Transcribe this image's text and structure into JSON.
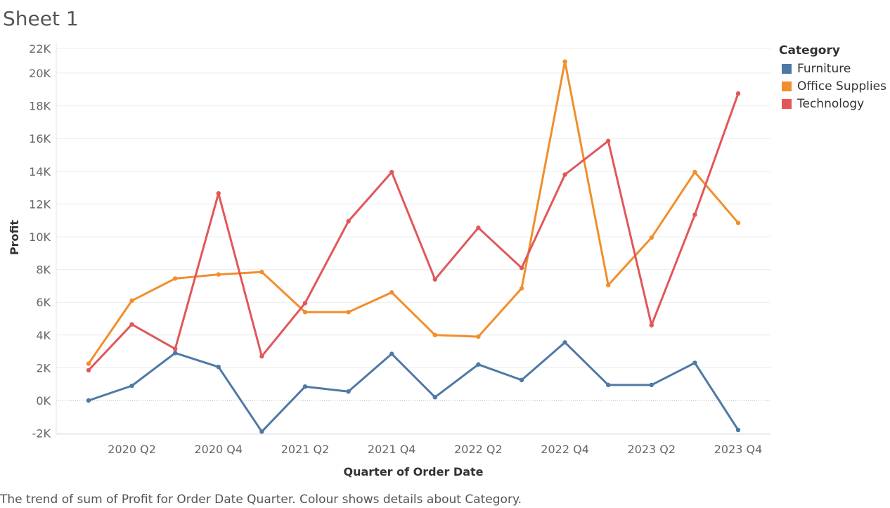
{
  "sheet": {
    "title": "Sheet 1"
  },
  "caption": "The trend of sum of Profit for Order Date Quarter.  Colour shows details about Category.",
  "legend": {
    "title": "Category"
  },
  "chart_data": {
    "type": "line",
    "xlabel": "Quarter of Order Date",
    "ylabel": "Profit",
    "x": [
      "2020 Q1",
      "2020 Q2",
      "2020 Q3",
      "2020 Q4",
      "2021 Q1",
      "2021 Q2",
      "2021 Q3",
      "2021 Q4",
      "2022 Q1",
      "2022 Q2",
      "2022 Q3",
      "2022 Q4",
      "2023 Q1",
      "2023 Q2",
      "2023 Q3",
      "2023 Q4"
    ],
    "x_tick_labels": [
      "2020 Q2",
      "2020 Q4",
      "2021 Q2",
      "2021 Q4",
      "2022 Q2",
      "2022 Q4",
      "2023 Q2",
      "2023 Q4"
    ],
    "x_tick_indices": [
      1,
      3,
      5,
      7,
      9,
      11,
      13,
      15
    ],
    "y_tick_labels": [
      "-2K",
      "0K",
      "2K",
      "4K",
      "6K",
      "8K",
      "10K",
      "12K",
      "14K",
      "16K",
      "18K",
      "20K",
      "22K"
    ],
    "y_tick_values": [
      -2000,
      0,
      2000,
      4000,
      6000,
      8000,
      10000,
      12000,
      14000,
      16000,
      18000,
      20000,
      21500
    ],
    "ylim": [
      -2000,
      21500
    ],
    "grid": true,
    "legend_position": "top-right",
    "series": [
      {
        "name": "Furniture",
        "color": "#4e79a7",
        "values": [
          0,
          900,
          2900,
          2050,
          -1900,
          850,
          550,
          2850,
          200,
          2200,
          1250,
          3550,
          950,
          950,
          2300,
          -1800
        ]
      },
      {
        "name": "Office Supplies",
        "color": "#f28e2b",
        "values": [
          2250,
          6100,
          7450,
          7700,
          7850,
          5400,
          5400,
          6600,
          4000,
          3900,
          6850,
          20700,
          7050,
          9950,
          13950,
          10850
        ]
      },
      {
        "name": "Technology",
        "color": "#e15759",
        "values": [
          1850,
          4650,
          3150,
          12650,
          2700,
          5950,
          10950,
          13950,
          7400,
          10550,
          8100,
          13800,
          15850,
          4600,
          11350,
          18750
        ]
      }
    ]
  }
}
